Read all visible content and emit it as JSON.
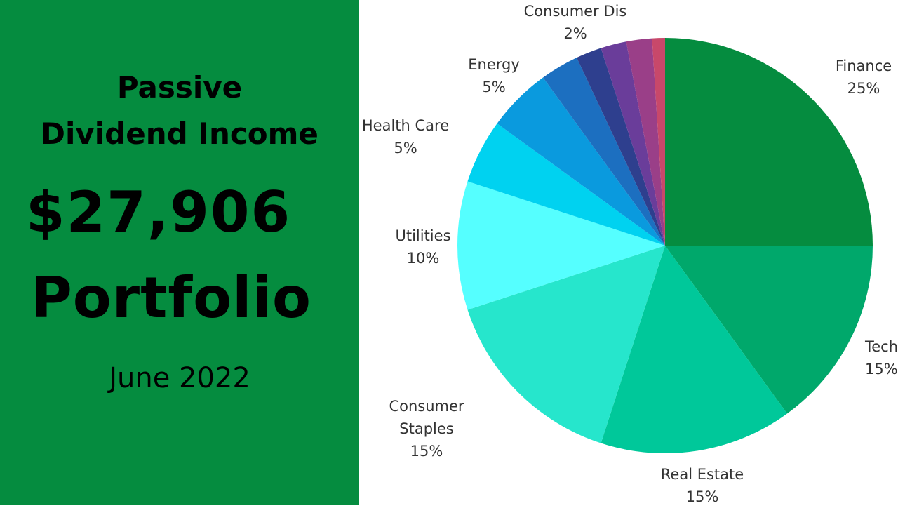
{
  "panel": {
    "title_line1": "Passive",
    "title_line2": "Dividend Income",
    "amount": "$27,906",
    "subtitle": "Portfolio",
    "date": "June 2022"
  },
  "chart_data": {
    "type": "pie",
    "categories": [
      "Finance",
      "Tech",
      "Real Estate",
      "Consumer Staples",
      "Utilities",
      "Health Care",
      "Energy",
      null,
      "Consumer Dis",
      null,
      null,
      null
    ],
    "values": [
      25,
      15,
      15,
      15,
      10,
      5,
      5,
      3,
      2,
      2,
      2,
      1
    ],
    "value_labels": [
      "25%",
      "15%",
      "15%",
      "15%",
      "10%",
      "5%",
      "5%",
      null,
      "2%",
      null,
      null,
      null
    ],
    "colors": [
      "#058c3f",
      "#00a86b",
      "#00c89a",
      "#26e6cc",
      "#55ffff",
      "#00d2f0",
      "#0a9ade",
      "#1c6fc0",
      "#2e3f8e",
      "#6a3d9a",
      "#9a3f88",
      "#c8486a"
    ]
  }
}
